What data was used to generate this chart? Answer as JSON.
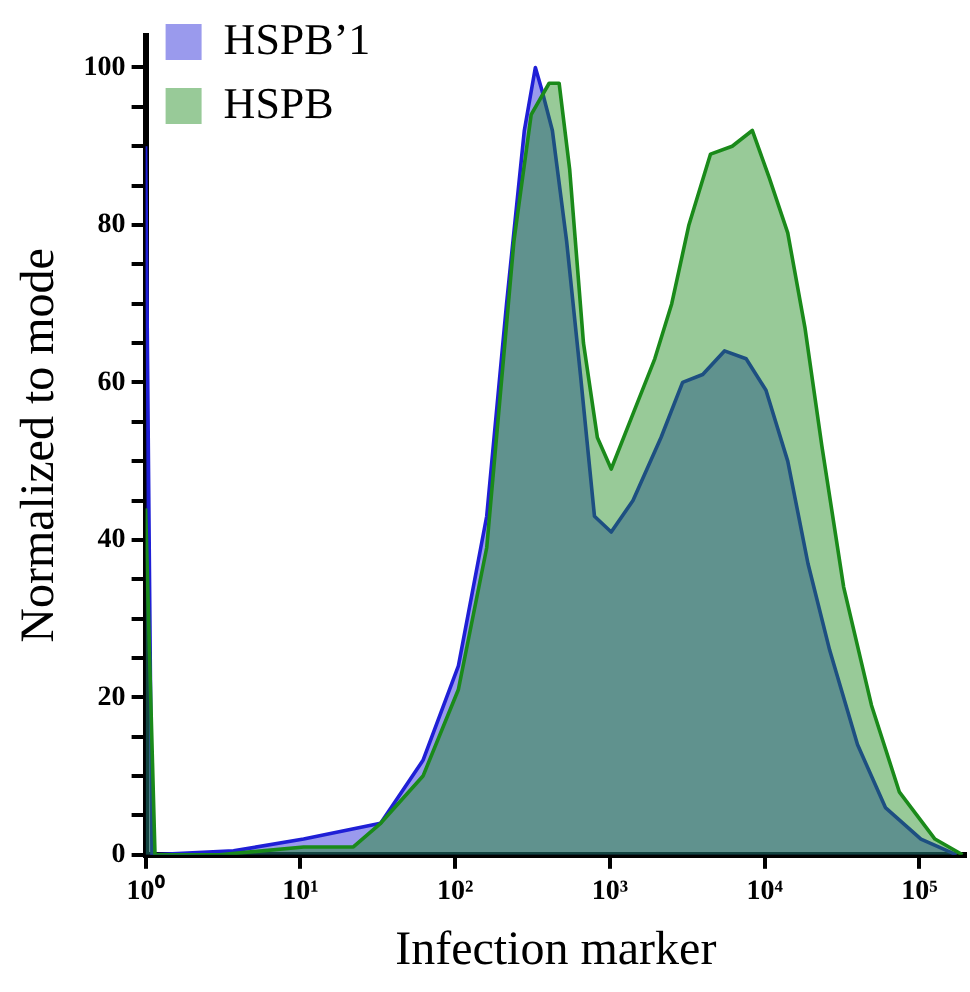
{
  "chart_data": {
    "type": "area",
    "xlabel": "Infection marker",
    "ylabel": "Normalized to mode",
    "log": "x",
    "xlim": [
      1,
      200000
    ],
    "ylim": [
      0,
      104
    ],
    "xticks": [
      {
        "value": 1,
        "label": "10⁰"
      },
      {
        "value": 10,
        "label": "10¹"
      },
      {
        "value": 100,
        "label": "10²"
      },
      {
        "value": 1000,
        "label": "10³"
      },
      {
        "value": 10000,
        "label": "10⁴"
      },
      {
        "value": 100000,
        "label": "10⁵"
      }
    ],
    "yticks": [
      0,
      {
        "value": 5,
        "label": null
      },
      {
        "value": 10,
        "label": null
      },
      {
        "value": 15,
        "label": null
      },
      20,
      {
        "value": 25,
        "label": null
      },
      {
        "value": 30,
        "label": null
      },
      {
        "value": 35,
        "label": null
      },
      40,
      {
        "value": 45,
        "label": null
      },
      {
        "value": 50,
        "label": null
      },
      {
        "value": 55,
        "label": null
      },
      60,
      {
        "value": 65,
        "label": null
      },
      {
        "value": 70,
        "label": null
      },
      {
        "value": 75,
        "label": null
      },
      80,
      {
        "value": 85,
        "label": null
      },
      {
        "value": 90,
        "label": null
      },
      {
        "value": 95,
        "label": null
      },
      100
    ],
    "grid": false,
    "legend": "top left",
    "series": [
      {
        "name": "HSPB’1",
        "color": "#1f1fd6",
        "x": [
          1,
          1.1,
          3.7,
          10.5,
          33,
          62,
          105,
          160,
          215,
          280,
          330,
          365,
          425,
          525,
          645,
          795,
          1020,
          1410,
          2140,
          2950,
          3980,
          5500,
          7590,
          10200,
          14100,
          19050,
          26300,
          39800,
          60300,
          102300,
          173800
        ],
        "values": [
          90,
          0,
          0.5,
          2,
          4,
          12,
          24,
          43,
          70,
          92,
          100,
          97,
          92,
          78,
          61,
          43,
          41,
          45,
          53,
          60,
          61,
          64,
          63,
          59,
          50,
          37,
          26,
          14,
          6,
          2,
          0
        ]
      },
      {
        "name": "HSPB",
        "color": "#1a8a1a",
        "x": [
          1,
          1.15,
          3,
          10.5,
          22,
          33,
          62,
          105,
          160,
          240,
          310,
          405,
          470,
          550,
          675,
          830,
          1020,
          1410,
          1950,
          2510,
          3240,
          4470,
          6170,
          8320,
          10700,
          14100,
          18200,
          23400,
          32400,
          49000,
          74100,
          126000,
          190000
        ],
        "values": [
          44,
          0,
          0,
          1,
          1,
          4,
          10,
          21,
          39,
          78,
          94,
          98,
          98,
          87,
          65,
          53,
          49,
          56,
          63,
          70,
          80,
          89,
          90,
          92,
          86,
          79,
          67,
          52,
          34,
          19,
          8,
          2,
          0
        ]
      }
    ]
  }
}
